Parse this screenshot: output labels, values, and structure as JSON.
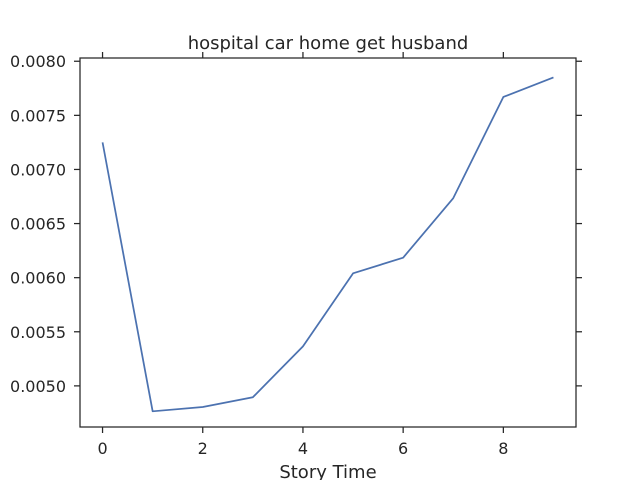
{
  "chart_data": {
    "type": "line",
    "title": "hospital car home get husband",
    "xlabel": "Story Time",
    "ylabel": "",
    "xlim": [
      -0.45,
      9.45
    ],
    "ylim": [
      0.00462,
      0.00803
    ],
    "x_ticks": [
      0,
      2,
      4,
      6,
      8
    ],
    "x_tick_labels": [
      "0",
      "2",
      "4",
      "6",
      "8"
    ],
    "y_ticks": [
      0.005,
      0.0055,
      0.006,
      0.0065,
      0.007,
      0.0075,
      0.008
    ],
    "y_tick_labels": [
      "0.0050",
      "0.0055",
      "0.0060",
      "0.0065",
      "0.0070",
      "0.0075",
      "0.0080"
    ],
    "grid": false,
    "series": [
      {
        "color": "#4c72b0",
        "x": [
          0,
          1,
          2,
          3,
          4,
          5,
          6,
          7,
          8,
          9
        ],
        "y": [
          0.00725,
          0.004765,
          0.004805,
          0.004895,
          0.005365,
          0.00604,
          0.006185,
          0.006735,
          0.00767,
          0.00785
        ]
      }
    ]
  }
}
